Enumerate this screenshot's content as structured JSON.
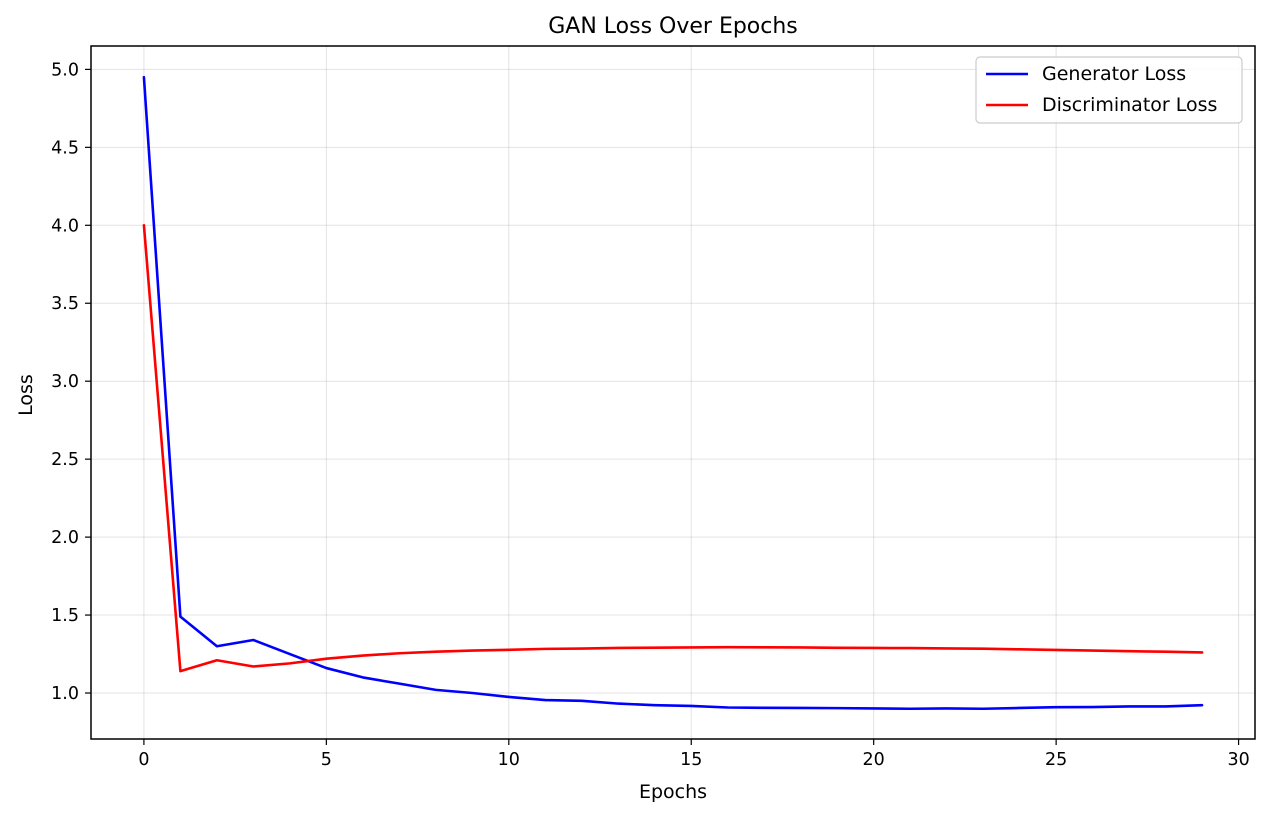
{
  "chart_data": {
    "type": "line",
    "title": "GAN Loss Over Epochs",
    "xlabel": "Epochs",
    "ylabel": "Loss",
    "xlim": [
      -1.45,
      30.45
    ],
    "ylim": [
      0.705,
      5.15
    ],
    "xticks": [
      0,
      5,
      10,
      15,
      20,
      25,
      30
    ],
    "xtick_labels": [
      "0",
      "5",
      "10",
      "15",
      "20",
      "25",
      "30"
    ],
    "yticks": [
      1.0,
      1.5,
      2.0,
      2.5,
      3.0,
      3.5,
      4.0,
      4.5,
      5.0
    ],
    "ytick_labels": [
      "1.0",
      "1.5",
      "2.0",
      "2.5",
      "3.0",
      "3.5",
      "4.0",
      "4.5",
      "5.0"
    ],
    "grid": true,
    "legend_position": "top-right",
    "x": [
      0,
      1,
      2,
      3,
      4,
      5,
      6,
      7,
      8,
      9,
      10,
      11,
      12,
      13,
      14,
      15,
      16,
      17,
      18,
      19,
      20,
      21,
      22,
      23,
      24,
      25,
      26,
      27,
      28,
      29
    ],
    "series": [
      {
        "name": "Generator Loss",
        "color": "#0000ff",
        "values": [
          4.95,
          1.49,
          1.3,
          1.34,
          1.25,
          1.16,
          1.1,
          1.06,
          1.02,
          1.0,
          0.975,
          0.955,
          0.95,
          0.932,
          0.922,
          0.917,
          0.907,
          0.905,
          0.904,
          0.903,
          0.901,
          0.899,
          0.901,
          0.899,
          0.904,
          0.909,
          0.91,
          0.914,
          0.914,
          0.922
        ]
      },
      {
        "name": "Discriminator Loss",
        "color": "#ff0000",
        "values": [
          4.0,
          1.14,
          1.21,
          1.17,
          1.19,
          1.22,
          1.24,
          1.255,
          1.265,
          1.272,
          1.277,
          1.283,
          1.285,
          1.289,
          1.291,
          1.292,
          1.294,
          1.293,
          1.292,
          1.29,
          1.289,
          1.288,
          1.286,
          1.284,
          1.28,
          1.276,
          1.272,
          1.268,
          1.265,
          1.26
        ]
      }
    ]
  }
}
